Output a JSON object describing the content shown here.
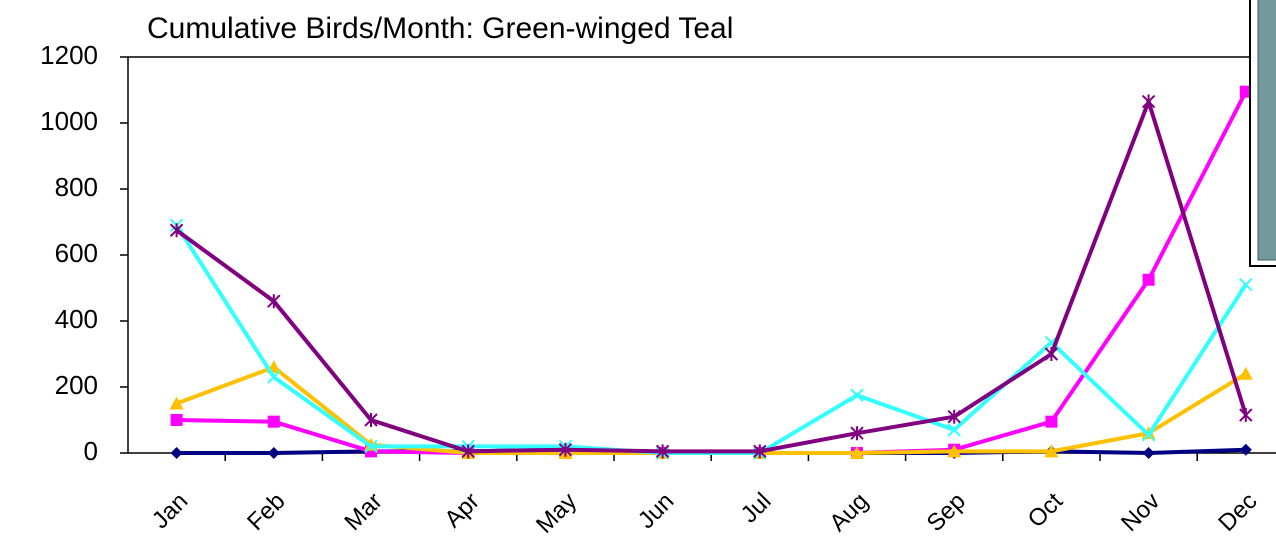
{
  "chart_data": {
    "type": "line",
    "title": "Cumulative Birds/Month: Green-winged Teal",
    "categories": [
      "Jan",
      "Feb",
      "Mar",
      "Apr",
      "May",
      "Jun",
      "Jul",
      "Aug",
      "Sep",
      "Oct",
      "Nov",
      "Dec"
    ],
    "series": [
      {
        "color": "#000080",
        "marker": "diamond",
        "values": [
          0,
          0,
          5,
          5,
          10,
          0,
          0,
          0,
          0,
          5,
          0,
          10
        ]
      },
      {
        "color": "#ff00ff",
        "marker": "square",
        "values": [
          100,
          95,
          5,
          0,
          0,
          0,
          0,
          0,
          10,
          95,
          525,
          1095
        ]
      },
      {
        "color": "#ffc000",
        "marker": "triangle",
        "values": [
          150,
          260,
          25,
          0,
          0,
          0,
          0,
          0,
          5,
          5,
          60,
          240
        ]
      },
      {
        "color": "#33ffff",
        "marker": "x",
        "values": [
          690,
          230,
          20,
          20,
          20,
          0,
          0,
          175,
          70,
          335,
          55,
          510
        ]
      },
      {
        "color": "#800080",
        "marker": "asterisk",
        "values": [
          675,
          460,
          100,
          5,
          10,
          5,
          5,
          60,
          110,
          300,
          1065,
          115
        ]
      }
    ],
    "ylim": [
      0,
      1200
    ],
    "yticks": [
      0,
      200,
      400,
      600,
      800,
      1000,
      1200
    ],
    "grid": false
  }
}
